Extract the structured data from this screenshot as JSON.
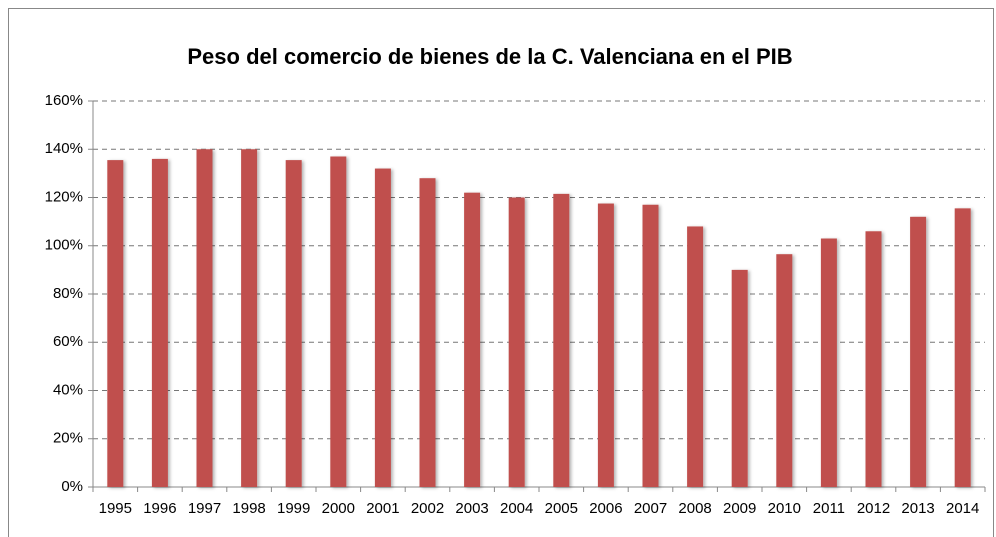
{
  "chart_data": {
    "type": "bar",
    "title": "Peso del comercio de bienes de la C. Valenciana en el PIB",
    "categories": [
      "1995",
      "1996",
      "1997",
      "1998",
      "1999",
      "2000",
      "2001",
      "2002",
      "2003",
      "2004",
      "2005",
      "2006",
      "2007",
      "2008",
      "2009",
      "2010",
      "2011",
      "2012",
      "2013",
      "2014"
    ],
    "values": [
      135.5,
      136,
      140,
      140,
      135.5,
      137,
      132,
      128,
      122,
      120,
      121.5,
      117.5,
      117,
      108,
      90,
      96.5,
      103,
      106,
      112,
      115.5
    ],
    "color": "#c0504d",
    "ylim": [
      0,
      160
    ],
    "yticks": [
      {
        "value": 0,
        "label": "0%"
      },
      {
        "value": 20,
        "label": "20%"
      },
      {
        "value": 40,
        "label": "40%"
      },
      {
        "value": 60,
        "label": "60%"
      },
      {
        "value": 80,
        "label": "80%"
      },
      {
        "value": 100,
        "label": "100%"
      },
      {
        "value": 120,
        "label": "120%"
      },
      {
        "value": 140,
        "label": "140%"
      },
      {
        "value": 160,
        "label": "160%"
      }
    ],
    "grid": true
  }
}
